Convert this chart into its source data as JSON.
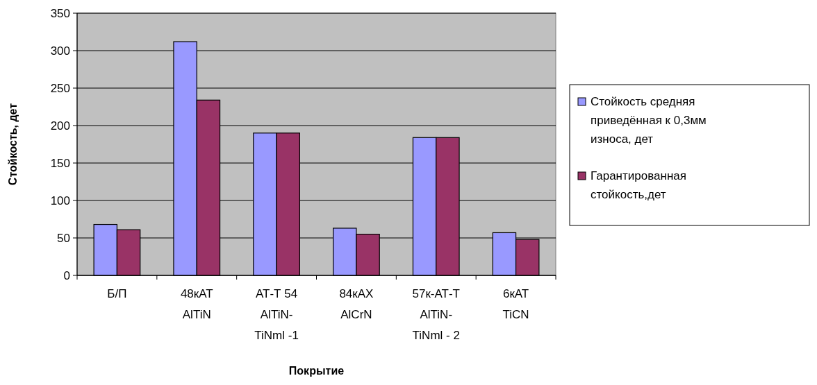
{
  "chart_data": {
    "type": "bar",
    "xlabel": "Покрытие",
    "ylabel": "Стойкость, дет",
    "categories": [
      "Б/П",
      "48кАТ\nAlTiN",
      "АТ-Т 54\nAlTiN-\nTiNml -1",
      "84кАХ\nAlCrN",
      "57к-АТ-Т\nAlTiN-\nTiNml - 2",
      "6кАТ\nTiCN"
    ],
    "series": [
      {
        "name": "Стойкость средняя приведённая к 0,3мм износа, дет",
        "color": "#9999ff",
        "values": [
          68,
          312,
          190,
          63,
          184,
          57
        ]
      },
      {
        "name": "Гарантированная стойкость,дет",
        "color": "#993366",
        "values": [
          61,
          234,
          190,
          55,
          184,
          48
        ]
      }
    ],
    "ylim": [
      0,
      350
    ],
    "yticks": [
      0,
      50,
      100,
      150,
      200,
      250,
      300,
      350
    ],
    "grid": "y",
    "legend": "right"
  }
}
